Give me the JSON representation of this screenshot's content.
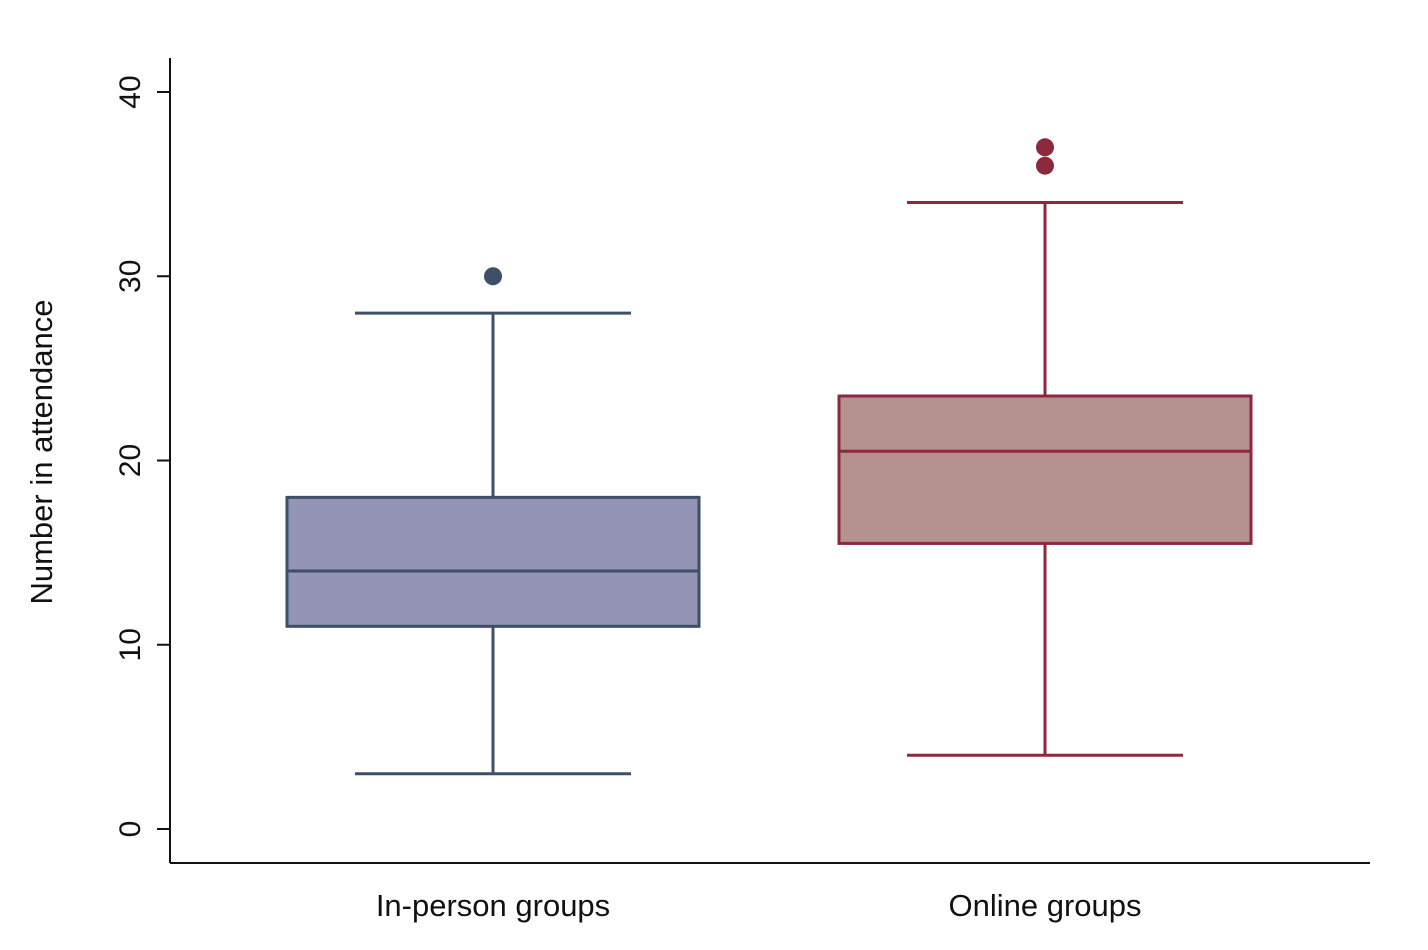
{
  "chart_data": {
    "type": "box",
    "title": "",
    "xlabel": "",
    "ylabel": "Number in attendance",
    "ylim": [
      0,
      40
    ],
    "yticks": [
      0,
      10,
      20,
      30,
      40
    ],
    "ytick_labels": [
      "0",
      "10",
      "20",
      "30",
      "40"
    ],
    "grid": false,
    "categories": [
      "In-person groups",
      "Online groups"
    ],
    "boxes": [
      {
        "category": "In-person groups",
        "whisker_low": 3,
        "q1": 11,
        "median": 14,
        "q3": 18,
        "whisker_high": 28,
        "outliers": [
          30
        ],
        "fill": "#9394b6",
        "stroke": "#3d5068"
      },
      {
        "category": "Online groups",
        "whisker_low": 4,
        "q1": 15.5,
        "median": 20.5,
        "q3": 23.5,
        "whisker_high": 34,
        "outliers": [
          36,
          37
        ],
        "fill": "#b59290",
        "stroke": "#8b2a3e"
      }
    ]
  }
}
